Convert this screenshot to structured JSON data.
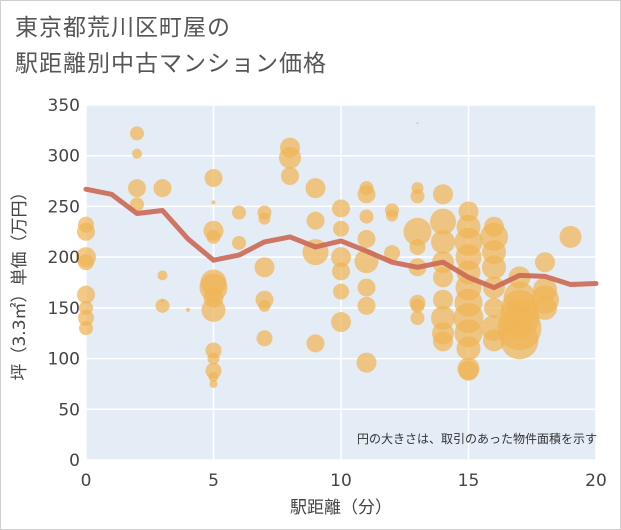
{
  "title_line1": "東京都荒川区町屋の",
  "title_line2": "駅距離別中古マンション価格",
  "chart_data": {
    "type": "scatter",
    "xlabel": "駅距離（分）",
    "ylabel": "坪（3.3㎡）単価（万円）",
    "xlim": [
      0,
      20
    ],
    "ylim": [
      0,
      350
    ],
    "xticks": [
      0,
      5,
      10,
      15,
      20
    ],
    "yticks": [
      0,
      50,
      100,
      150,
      200,
      250,
      300,
      350
    ],
    "grid": true,
    "annotation": "円の大きさは、取引のあった物件面積を示す",
    "colors": {
      "bubble": "#f0b455",
      "line": "#cc6a57"
    },
    "line": {
      "x": [
        0,
        1,
        2,
        3,
        4,
        5,
        6,
        7,
        8,
        9,
        10,
        11,
        12,
        13,
        14,
        15,
        16,
        17,
        18,
        19,
        20
      ],
      "y": [
        267,
        262,
        243,
        246,
        218,
        197,
        202,
        215,
        220,
        210,
        216,
        206,
        195,
        190,
        195,
        180,
        170,
        182,
        181,
        173,
        174
      ]
    },
    "bubbles": [
      {
        "x": 0,
        "y": 232,
        "s": 8
      },
      {
        "x": 0,
        "y": 225,
        "s": 9
      },
      {
        "x": 0,
        "y": 200,
        "s": 10
      },
      {
        "x": 0,
        "y": 195,
        "s": 8
      },
      {
        "x": 0,
        "y": 163,
        "s": 9
      },
      {
        "x": 0,
        "y": 150,
        "s": 7
      },
      {
        "x": 0,
        "y": 140,
        "s": 8
      },
      {
        "x": 0,
        "y": 130,
        "s": 7
      },
      {
        "x": 2,
        "y": 322,
        "s": 7
      },
      {
        "x": 2,
        "y": 302,
        "s": 5
      },
      {
        "x": 2,
        "y": 268,
        "s": 9
      },
      {
        "x": 2,
        "y": 252,
        "s": 7
      },
      {
        "x": 3,
        "y": 268,
        "s": 9
      },
      {
        "x": 3,
        "y": 182,
        "s": 5
      },
      {
        "x": 3,
        "y": 157,
        "s": 2
      },
      {
        "x": 3,
        "y": 152,
        "s": 7
      },
      {
        "x": 4,
        "y": 148,
        "s": 2
      },
      {
        "x": 5,
        "y": 278,
        "s": 9
      },
      {
        "x": 5,
        "y": 254,
        "s": 2
      },
      {
        "x": 5,
        "y": 226,
        "s": 10
      },
      {
        "x": 5,
        "y": 220,
        "s": 7
      },
      {
        "x": 5,
        "y": 175,
        "s": 13
      },
      {
        "x": 5,
        "y": 170,
        "s": 14
      },
      {
        "x": 5,
        "y": 160,
        "s": 10
      },
      {
        "x": 5,
        "y": 148,
        "s": 12
      },
      {
        "x": 5,
        "y": 108,
        "s": 8
      },
      {
        "x": 5,
        "y": 100,
        "s": 6
      },
      {
        "x": 5,
        "y": 88,
        "s": 8
      },
      {
        "x": 5,
        "y": 82,
        "s": 5
      },
      {
        "x": 5,
        "y": 75,
        "s": 4
      },
      {
        "x": 6,
        "y": 244,
        "s": 7
      },
      {
        "x": 6,
        "y": 214,
        "s": 7
      },
      {
        "x": 7,
        "y": 244,
        "s": 7
      },
      {
        "x": 7,
        "y": 238,
        "s": 6
      },
      {
        "x": 7,
        "y": 190,
        "s": 10
      },
      {
        "x": 7,
        "y": 158,
        "s": 9
      },
      {
        "x": 7,
        "y": 152,
        "s": 6
      },
      {
        "x": 7,
        "y": 120,
        "s": 8
      },
      {
        "x": 8,
        "y": 308,
        "s": 10
      },
      {
        "x": 8,
        "y": 298,
        "s": 11
      },
      {
        "x": 8,
        "y": 280,
        "s": 9
      },
      {
        "x": 9,
        "y": 268,
        "s": 10
      },
      {
        "x": 9,
        "y": 236,
        "s": 9
      },
      {
        "x": 9,
        "y": 205,
        "s": 13
      },
      {
        "x": 9,
        "y": 115,
        "s": 9
      },
      {
        "x": 10,
        "y": 248,
        "s": 9
      },
      {
        "x": 10,
        "y": 228,
        "s": 8
      },
      {
        "x": 10,
        "y": 200,
        "s": 10
      },
      {
        "x": 10,
        "y": 186,
        "s": 9
      },
      {
        "x": 10,
        "y": 166,
        "s": 8
      },
      {
        "x": 10,
        "y": 136,
        "s": 10
      },
      {
        "x": 11,
        "y": 268,
        "s": 7
      },
      {
        "x": 11,
        "y": 262,
        "s": 9
      },
      {
        "x": 11,
        "y": 240,
        "s": 7
      },
      {
        "x": 11,
        "y": 218,
        "s": 9
      },
      {
        "x": 11,
        "y": 196,
        "s": 12
      },
      {
        "x": 11,
        "y": 170,
        "s": 9
      },
      {
        "x": 11,
        "y": 152,
        "s": 9
      },
      {
        "x": 11,
        "y": 96,
        "s": 10
      },
      {
        "x": 12,
        "y": 246,
        "s": 7
      },
      {
        "x": 12,
        "y": 241,
        "s": 6
      },
      {
        "x": 12,
        "y": 204,
        "s": 8
      },
      {
        "x": 13,
        "y": 268,
        "s": 6
      },
      {
        "x": 13,
        "y": 260,
        "s": 7
      },
      {
        "x": 13,
        "y": 225,
        "s": 14
      },
      {
        "x": 13,
        "y": 210,
        "s": 8
      },
      {
        "x": 13,
        "y": 190,
        "s": 9
      },
      {
        "x": 13,
        "y": 155,
        "s": 8
      },
      {
        "x": 13,
        "y": 152,
        "s": 7
      },
      {
        "x": 13,
        "y": 140,
        "s": 7
      },
      {
        "x": 13,
        "y": 332,
        "s": 1
      },
      {
        "x": 14,
        "y": 262,
        "s": 10
      },
      {
        "x": 14,
        "y": 235,
        "s": 13
      },
      {
        "x": 14,
        "y": 215,
        "s": 12
      },
      {
        "x": 14,
        "y": 195,
        "s": 11
      },
      {
        "x": 14,
        "y": 180,
        "s": 10
      },
      {
        "x": 14,
        "y": 158,
        "s": 10
      },
      {
        "x": 14,
        "y": 140,
        "s": 12
      },
      {
        "x": 14,
        "y": 125,
        "s": 11
      },
      {
        "x": 14,
        "y": 117,
        "s": 10
      },
      {
        "x": 15,
        "y": 245,
        "s": 10
      },
      {
        "x": 15,
        "y": 230,
        "s": 12
      },
      {
        "x": 15,
        "y": 215,
        "s": 14
      },
      {
        "x": 15,
        "y": 200,
        "s": 13
      },
      {
        "x": 15,
        "y": 185,
        "s": 12
      },
      {
        "x": 15,
        "y": 170,
        "s": 13
      },
      {
        "x": 15,
        "y": 155,
        "s": 14
      },
      {
        "x": 15,
        "y": 140,
        "s": 15
      },
      {
        "x": 15,
        "y": 125,
        "s": 14
      },
      {
        "x": 15,
        "y": 110,
        "s": 12
      },
      {
        "x": 15,
        "y": 90,
        "s": 11
      },
      {
        "x": 15,
        "y": 88,
        "s": 10
      },
      {
        "x": 16,
        "y": 230,
        "s": 10
      },
      {
        "x": 16,
        "y": 220,
        "s": 14
      },
      {
        "x": 16,
        "y": 205,
        "s": 12
      },
      {
        "x": 16,
        "y": 190,
        "s": 12
      },
      {
        "x": 16,
        "y": 170,
        "s": 11
      },
      {
        "x": 16,
        "y": 150,
        "s": 10
      },
      {
        "x": 16,
        "y": 130,
        "s": 13
      },
      {
        "x": 16,
        "y": 118,
        "s": 11
      },
      {
        "x": 17,
        "y": 180,
        "s": 11
      },
      {
        "x": 17,
        "y": 160,
        "s": 16
      },
      {
        "x": 17,
        "y": 150,
        "s": 18
      },
      {
        "x": 17,
        "y": 140,
        "s": 20
      },
      {
        "x": 17,
        "y": 130,
        "s": 22
      },
      {
        "x": 17,
        "y": 118,
        "s": 19
      },
      {
        "x": 18,
        "y": 195,
        "s": 10
      },
      {
        "x": 18,
        "y": 168,
        "s": 12
      },
      {
        "x": 18,
        "y": 158,
        "s": 14
      },
      {
        "x": 18,
        "y": 150,
        "s": 12
      },
      {
        "x": 19,
        "y": 220,
        "s": 11
      }
    ]
  }
}
